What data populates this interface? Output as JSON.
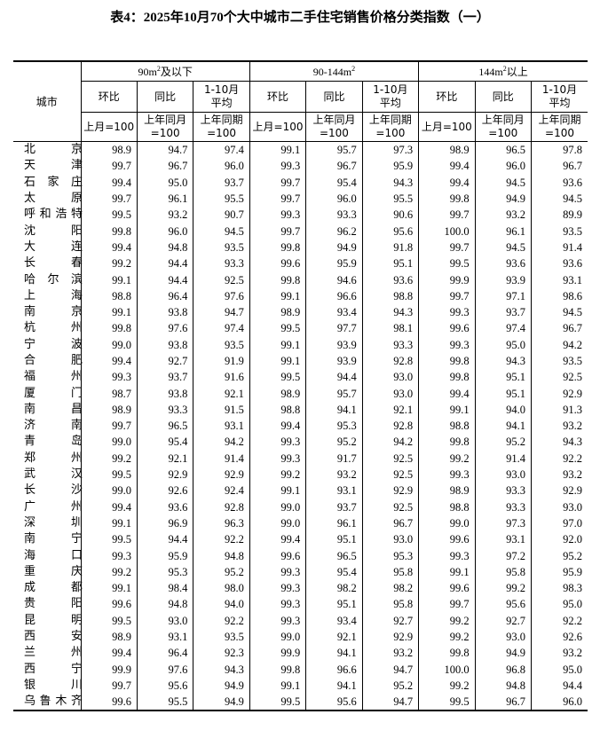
{
  "title": "表4：2025年10月70个大中城市二手住宅销售价格分类指数（一）",
  "header": {
    "city": "城市",
    "groups": [
      {
        "prefix": "90m",
        "sup": "2",
        "suffix": "及以下"
      },
      {
        "prefix": "90-144m",
        "sup": "2",
        "suffix": ""
      },
      {
        "prefix": "144m",
        "sup": "2",
        "suffix": "以上"
      }
    ],
    "sub": [
      "环比",
      "同比",
      "1-10月\n平均"
    ],
    "base": [
      "上月=100",
      "上年同月\n=100",
      "上年同期\n=100"
    ]
  },
  "rows": [
    [
      "北京",
      98.9,
      94.7,
      97.4,
      99.1,
      95.7,
      97.3,
      98.9,
      96.5,
      97.8
    ],
    [
      "天津",
      99.7,
      96.7,
      96.0,
      99.3,
      96.7,
      95.9,
      99.4,
      96.0,
      96.7
    ],
    [
      "石家庄",
      99.4,
      95.0,
      93.7,
      99.7,
      95.4,
      94.3,
      99.4,
      94.5,
      93.6
    ],
    [
      "太原",
      99.7,
      96.1,
      95.5,
      99.7,
      96.0,
      95.5,
      99.8,
      94.9,
      94.5
    ],
    [
      "呼和浩特",
      99.5,
      93.2,
      90.7,
      99.3,
      93.3,
      90.6,
      99.7,
      93.2,
      89.9
    ],
    [
      "沈阳",
      99.8,
      96.0,
      94.5,
      99.7,
      96.2,
      95.6,
      100.0,
      96.1,
      93.5
    ],
    [
      "大连",
      99.4,
      94.8,
      93.5,
      99.8,
      94.9,
      91.8,
      99.7,
      94.5,
      91.4
    ],
    [
      "长春",
      99.2,
      94.4,
      93.3,
      99.6,
      95.9,
      95.1,
      99.5,
      93.6,
      93.6
    ],
    [
      "哈尔滨",
      99.1,
      94.4,
      92.5,
      99.8,
      94.6,
      93.6,
      99.9,
      93.9,
      93.1
    ],
    [
      "上海",
      98.8,
      96.4,
      97.6,
      99.1,
      96.6,
      98.8,
      99.7,
      97.1,
      98.6
    ],
    [
      "南京",
      99.1,
      93.8,
      94.7,
      98.9,
      93.4,
      94.3,
      99.3,
      93.7,
      94.5
    ],
    [
      "杭州",
      99.8,
      97.6,
      97.4,
      99.5,
      97.7,
      98.1,
      99.6,
      97.4,
      96.7
    ],
    [
      "宁波",
      99.0,
      93.8,
      93.5,
      99.1,
      93.9,
      93.3,
      99.3,
      95.0,
      94.2
    ],
    [
      "合肥",
      99.4,
      92.7,
      91.9,
      99.1,
      93.9,
      92.8,
      99.8,
      94.3,
      93.5
    ],
    [
      "福州",
      99.3,
      93.7,
      91.6,
      99.5,
      94.4,
      93.0,
      99.8,
      95.1,
      92.5
    ],
    [
      "厦门",
      98.7,
      93.8,
      92.1,
      98.9,
      95.7,
      93.0,
      99.4,
      95.1,
      92.9
    ],
    [
      "南昌",
      98.9,
      93.3,
      91.5,
      98.8,
      94.1,
      92.1,
      99.1,
      94.0,
      91.3
    ],
    [
      "济南",
      99.7,
      96.5,
      93.1,
      99.4,
      95.3,
      92.8,
      98.8,
      94.1,
      93.2
    ],
    [
      "青岛",
      99.0,
      95.4,
      94.2,
      99.3,
      95.2,
      94.2,
      99.8,
      95.2,
      94.3
    ],
    [
      "郑州",
      99.2,
      92.1,
      91.4,
      99.3,
      91.7,
      92.5,
      99.2,
      91.4,
      92.2
    ],
    [
      "武汉",
      99.5,
      92.9,
      92.9,
      99.2,
      93.2,
      92.5,
      99.3,
      93.0,
      93.2
    ],
    [
      "长沙",
      99.0,
      92.6,
      92.4,
      99.1,
      93.1,
      92.9,
      98.9,
      93.3,
      92.9
    ],
    [
      "广州",
      99.4,
      93.6,
      92.8,
      99.0,
      93.7,
      92.5,
      98.8,
      93.3,
      93.0
    ],
    [
      "深圳",
      99.1,
      96.9,
      96.3,
      99.0,
      96.1,
      96.7,
      99.0,
      97.3,
      97.0
    ],
    [
      "南宁",
      99.5,
      94.4,
      92.2,
      99.4,
      95.1,
      93.0,
      99.6,
      93.1,
      92.0
    ],
    [
      "海口",
      99.3,
      95.9,
      94.8,
      99.6,
      96.5,
      95.3,
      99.3,
      97.2,
      95.2
    ],
    [
      "重庆",
      99.2,
      95.3,
      95.2,
      99.3,
      95.4,
      95.8,
      99.1,
      95.8,
      95.9
    ],
    [
      "成都",
      99.1,
      98.4,
      98.0,
      99.3,
      98.2,
      98.2,
      99.6,
      99.2,
      98.3
    ],
    [
      "贵阳",
      99.6,
      94.8,
      94.0,
      99.3,
      95.1,
      95.8,
      99.7,
      95.6,
      95.0
    ],
    [
      "昆明",
      99.5,
      93.0,
      92.2,
      99.3,
      93.4,
      92.7,
      99.2,
      92.7,
      92.2
    ],
    [
      "西安",
      98.9,
      93.1,
      93.5,
      99.0,
      92.1,
      92.9,
      99.2,
      93.0,
      92.6
    ],
    [
      "兰州",
      99.4,
      96.4,
      92.3,
      99.9,
      94.1,
      93.2,
      99.8,
      94.9,
      93.2
    ],
    [
      "西宁",
      99.9,
      97.6,
      94.3,
      99.8,
      96.6,
      94.7,
      100.0,
      96.8,
      95.0
    ],
    [
      "银川",
      99.7,
      95.6,
      94.9,
      99.1,
      94.1,
      95.2,
      99.2,
      94.8,
      94.4
    ],
    [
      "乌鲁木齐",
      99.6,
      95.5,
      94.9,
      99.5,
      95.6,
      94.7,
      99.5,
      96.7,
      96.0
    ]
  ]
}
